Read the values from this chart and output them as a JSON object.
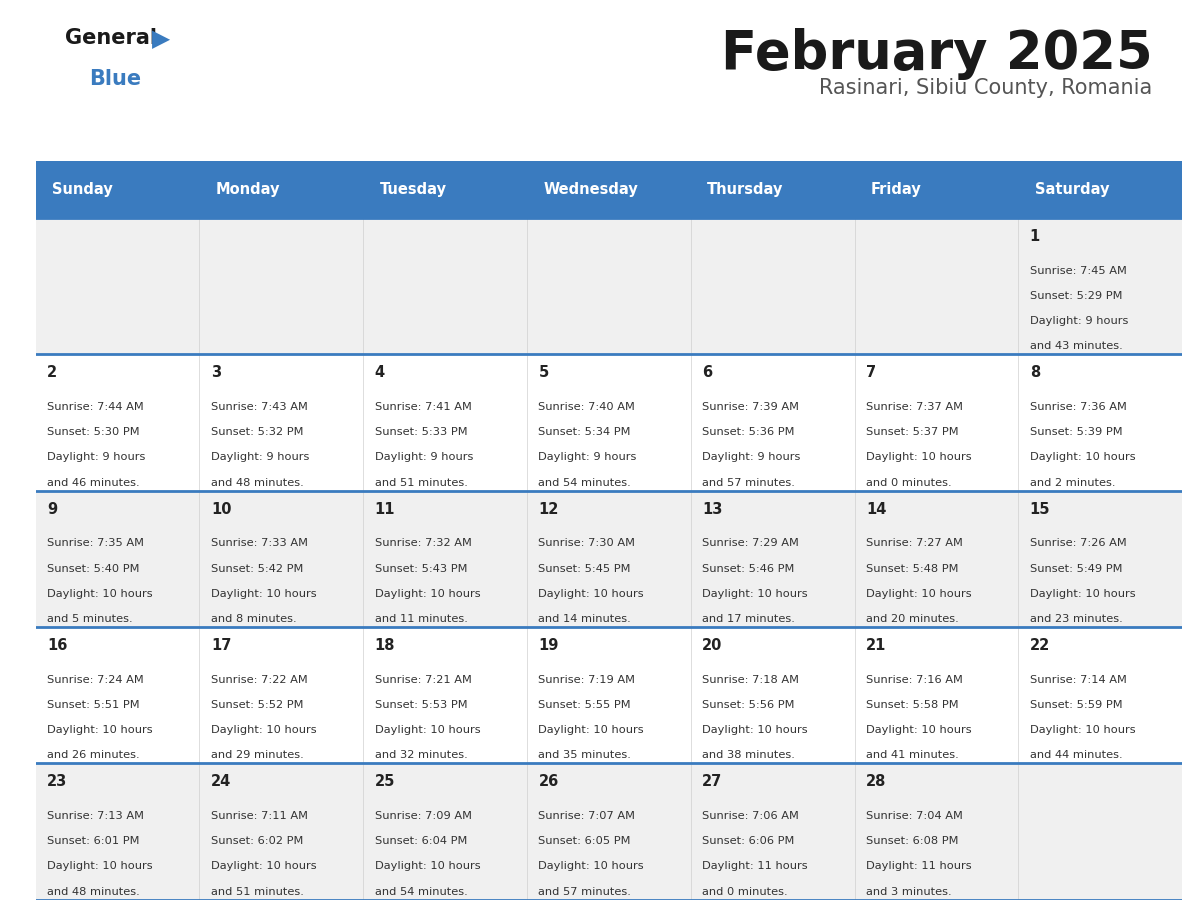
{
  "title": "February 2025",
  "subtitle": "Rasinari, Sibiu County, Romania",
  "header_bg": "#3a7bbf",
  "header_text": "#ffffff",
  "cell_bg_odd": "#f0f0f0",
  "cell_bg_even": "#ffffff",
  "cell_border": "#3a7bbf",
  "day_headers": [
    "Sunday",
    "Monday",
    "Tuesday",
    "Wednesday",
    "Thursday",
    "Friday",
    "Saturday"
  ],
  "title_color": "#1a1a1a",
  "subtitle_color": "#555555",
  "days": [
    {
      "day": 1,
      "col": 6,
      "row": 0,
      "sunrise": "7:45 AM",
      "sunset": "5:29 PM",
      "daylight": "9 hours and 43 minutes."
    },
    {
      "day": 2,
      "col": 0,
      "row": 1,
      "sunrise": "7:44 AM",
      "sunset": "5:30 PM",
      "daylight": "9 hours and 46 minutes."
    },
    {
      "day": 3,
      "col": 1,
      "row": 1,
      "sunrise": "7:43 AM",
      "sunset": "5:32 PM",
      "daylight": "9 hours and 48 minutes."
    },
    {
      "day": 4,
      "col": 2,
      "row": 1,
      "sunrise": "7:41 AM",
      "sunset": "5:33 PM",
      "daylight": "9 hours and 51 minutes."
    },
    {
      "day": 5,
      "col": 3,
      "row": 1,
      "sunrise": "7:40 AM",
      "sunset": "5:34 PM",
      "daylight": "9 hours and 54 minutes."
    },
    {
      "day": 6,
      "col": 4,
      "row": 1,
      "sunrise": "7:39 AM",
      "sunset": "5:36 PM",
      "daylight": "9 hours and 57 minutes."
    },
    {
      "day": 7,
      "col": 5,
      "row": 1,
      "sunrise": "7:37 AM",
      "sunset": "5:37 PM",
      "daylight": "10 hours and 0 minutes."
    },
    {
      "day": 8,
      "col": 6,
      "row": 1,
      "sunrise": "7:36 AM",
      "sunset": "5:39 PM",
      "daylight": "10 hours and 2 minutes."
    },
    {
      "day": 9,
      "col": 0,
      "row": 2,
      "sunrise": "7:35 AM",
      "sunset": "5:40 PM",
      "daylight": "10 hours and 5 minutes."
    },
    {
      "day": 10,
      "col": 1,
      "row": 2,
      "sunrise": "7:33 AM",
      "sunset": "5:42 PM",
      "daylight": "10 hours and 8 minutes."
    },
    {
      "day": 11,
      "col": 2,
      "row": 2,
      "sunrise": "7:32 AM",
      "sunset": "5:43 PM",
      "daylight": "10 hours and 11 minutes."
    },
    {
      "day": 12,
      "col": 3,
      "row": 2,
      "sunrise": "7:30 AM",
      "sunset": "5:45 PM",
      "daylight": "10 hours and 14 minutes."
    },
    {
      "day": 13,
      "col": 4,
      "row": 2,
      "sunrise": "7:29 AM",
      "sunset": "5:46 PM",
      "daylight": "10 hours and 17 minutes."
    },
    {
      "day": 14,
      "col": 5,
      "row": 2,
      "sunrise": "7:27 AM",
      "sunset": "5:48 PM",
      "daylight": "10 hours and 20 minutes."
    },
    {
      "day": 15,
      "col": 6,
      "row": 2,
      "sunrise": "7:26 AM",
      "sunset": "5:49 PM",
      "daylight": "10 hours and 23 minutes."
    },
    {
      "day": 16,
      "col": 0,
      "row": 3,
      "sunrise": "7:24 AM",
      "sunset": "5:51 PM",
      "daylight": "10 hours and 26 minutes."
    },
    {
      "day": 17,
      "col": 1,
      "row": 3,
      "sunrise": "7:22 AM",
      "sunset": "5:52 PM",
      "daylight": "10 hours and 29 minutes."
    },
    {
      "day": 18,
      "col": 2,
      "row": 3,
      "sunrise": "7:21 AM",
      "sunset": "5:53 PM",
      "daylight": "10 hours and 32 minutes."
    },
    {
      "day": 19,
      "col": 3,
      "row": 3,
      "sunrise": "7:19 AM",
      "sunset": "5:55 PM",
      "daylight": "10 hours and 35 minutes."
    },
    {
      "day": 20,
      "col": 4,
      "row": 3,
      "sunrise": "7:18 AM",
      "sunset": "5:56 PM",
      "daylight": "10 hours and 38 minutes."
    },
    {
      "day": 21,
      "col": 5,
      "row": 3,
      "sunrise": "7:16 AM",
      "sunset": "5:58 PM",
      "daylight": "10 hours and 41 minutes."
    },
    {
      "day": 22,
      "col": 6,
      "row": 3,
      "sunrise": "7:14 AM",
      "sunset": "5:59 PM",
      "daylight": "10 hours and 44 minutes."
    },
    {
      "day": 23,
      "col": 0,
      "row": 4,
      "sunrise": "7:13 AM",
      "sunset": "6:01 PM",
      "daylight": "10 hours and 48 minutes."
    },
    {
      "day": 24,
      "col": 1,
      "row": 4,
      "sunrise": "7:11 AM",
      "sunset": "6:02 PM",
      "daylight": "10 hours and 51 minutes."
    },
    {
      "day": 25,
      "col": 2,
      "row": 4,
      "sunrise": "7:09 AM",
      "sunset": "6:04 PM",
      "daylight": "10 hours and 54 minutes."
    },
    {
      "day": 26,
      "col": 3,
      "row": 4,
      "sunrise": "7:07 AM",
      "sunset": "6:05 PM",
      "daylight": "10 hours and 57 minutes."
    },
    {
      "day": 27,
      "col": 4,
      "row": 4,
      "sunrise": "7:06 AM",
      "sunset": "6:06 PM",
      "daylight": "11 hours and 0 minutes."
    },
    {
      "day": 28,
      "col": 5,
      "row": 4,
      "sunrise": "7:04 AM",
      "sunset": "6:08 PM",
      "daylight": "11 hours and 3 minutes."
    }
  ]
}
